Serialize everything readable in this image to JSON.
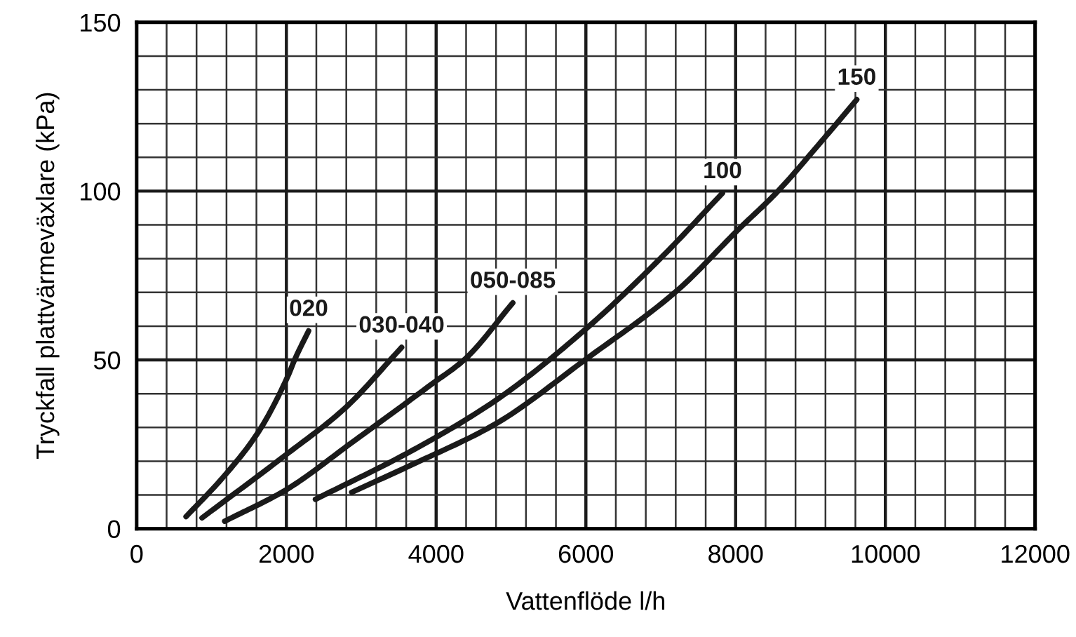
{
  "chart_data": {
    "type": "line",
    "xlabel": "Vattenflöde l/h",
    "ylabel": "Tryckfall plattvärmeväxlare (kPa)",
    "xlim": [
      0,
      12000
    ],
    "ylim": [
      0,
      150
    ],
    "xticks": [
      0,
      2000,
      4000,
      6000,
      8000,
      10000,
      12000
    ],
    "yticks": [
      0,
      50,
      100,
      150
    ],
    "grid": true,
    "line_style": "solid",
    "series": [
      {
        "name": "020",
        "color": "#1a1a1a",
        "x": [
          660,
          1145,
          1630,
          2024,
          2109,
          2297
        ],
        "values": [
          3.6,
          15,
          28.8,
          45.4,
          50,
          58.6
        ]
      },
      {
        "name": "030-040",
        "color": "#1a1a1a",
        "x": [
          873,
          1994,
          2782,
          3539
        ],
        "values": [
          3.2,
          21.9,
          35.7,
          53.7
        ]
      },
      {
        "name": "050-085",
        "color": "#1a1a1a",
        "x": [
          1176,
          1994,
          2903,
          3933,
          4388,
          5024
        ],
        "values": [
          2.2,
          11.5,
          26,
          42.7,
          50.3,
          66.9
        ]
      },
      {
        "name": "100",
        "color": "#1a1a1a",
        "x": [
          2388,
          3691,
          4782,
          6006,
          7024,
          7824
        ],
        "values": [
          8.7,
          23.3,
          37.8,
          59.3,
          80.7,
          99.4
        ]
      },
      {
        "name": "150",
        "color": "#1a1a1a",
        "x": [
          2873,
          3691,
          4782,
          6006,
          7206,
          8054,
          8540,
          9145,
          9618
        ],
        "values": [
          10.8,
          19.1,
          30.9,
          50.3,
          70.3,
          89,
          99.4,
          114.7,
          127.1
        ]
      }
    ]
  }
}
